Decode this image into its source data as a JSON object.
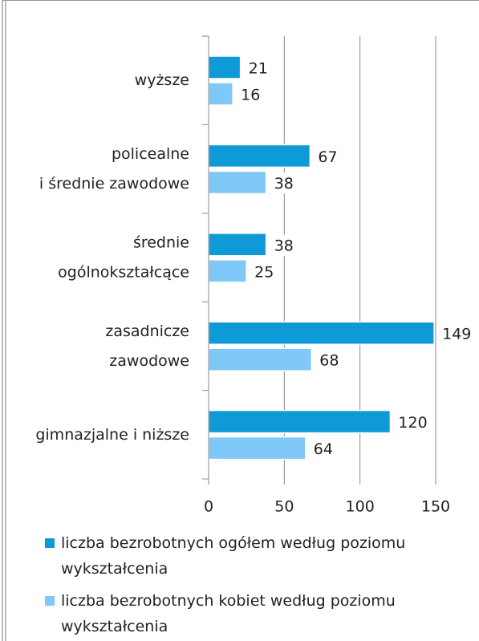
{
  "chart_data": {
    "type": "hbar",
    "categories": [
      "wyższe",
      "policealne\ni średnie zawodowe",
      "średnie\nogólnokształcące",
      "zasadnicze\nzawodowe",
      "gimnazjalne i niższe"
    ],
    "series": [
      {
        "name": "liczba bezrobotnych ogółem według poziomu wykształcenia",
        "color": "#0e9ad7",
        "values": [
          21,
          67,
          38,
          149,
          120
        ]
      },
      {
        "name": "liczba bezrobotnych kobiet według poziomu wykształcenia",
        "color": "#80c8f7",
        "values": [
          16,
          38,
          25,
          68,
          64
        ]
      }
    ],
    "xlim": [
      0,
      150
    ],
    "xticks": [
      0,
      50,
      100,
      150
    ],
    "grid": true,
    "legend": "bottom"
  }
}
